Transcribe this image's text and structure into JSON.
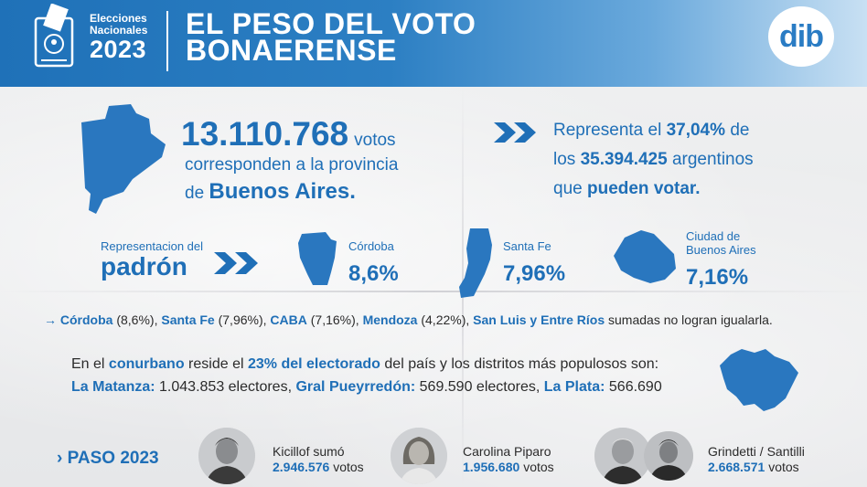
{
  "header": {
    "event_line1": "Elecciones",
    "event_line2": "Nacionales",
    "event_year": "2023",
    "title_line1": "EL PESO DEL VOTO",
    "title_line2": "BONAERENSE",
    "logo_text": "dib",
    "background_colors": [
      "#1f71b8",
      "#c8e0f3"
    ]
  },
  "votes": {
    "number": "13.110.768",
    "unit": "votos",
    "line2": "corresponden a la provincia",
    "line3_prefix": "de",
    "province": "Buenos Aires."
  },
  "represents": {
    "l1_pre": "Representa el",
    "pct": "37,04%",
    "l1_post": "de",
    "l2_pre": "los",
    "total": "35.394.425",
    "l2_post": "argentinos",
    "l3_pre": "que",
    "l3_bold": "pueden votar."
  },
  "padron": {
    "small": "Representacion del",
    "big": "padrón",
    "provinces": [
      {
        "name": "Córdoba",
        "pct": "8,6%"
      },
      {
        "name": "Santa Fe",
        "pct": "7,96%"
      },
      {
        "name_l1": "Ciudad de",
        "name_l2": "Buenos Aires",
        "pct": "7,16%"
      }
    ]
  },
  "note": {
    "arrow": "→",
    "p1": "Córdoba",
    "v1": "(8,6%),",
    "p2": "Santa Fe",
    "v2": "(7,96%),",
    "p3": "CABA",
    "v3": "(7,16%),",
    "p4": "Mendoza",
    "v4": "(4,22%),",
    "p5": "San Luis",
    "conj": "y",
    "p6": "Entre Ríos",
    "tail": "sumadas no logran igualarla."
  },
  "conurbano": {
    "l1_a": "En el",
    "l1_b": "conurbano",
    "l1_c": "reside el",
    "l1_d": "23% del electorado",
    "l1_e": "del país y los distritos más populosos son:",
    "d1": "La Matanza:",
    "d1v": "1.043.853 electores,",
    "d2": "Gral Pueyrredón:",
    "d2v": "569.590 electores,",
    "d3": "La Plata:",
    "d3v": "566.690"
  },
  "paso": {
    "label": "PASO 2023",
    "candidates": [
      {
        "name": "Kicillof sumó",
        "votes": "2.946.576",
        "unit": "votos"
      },
      {
        "name": "Carolina Piparo",
        "votes": "1.956.680",
        "unit": "votos"
      },
      {
        "name": "Grindetti / Santilli",
        "votes": "2.668.571",
        "unit": "votos"
      }
    ]
  },
  "colors": {
    "accent": "#1f6fb7",
    "text": "#2b2b2b",
    "paper": "#ecedee"
  }
}
